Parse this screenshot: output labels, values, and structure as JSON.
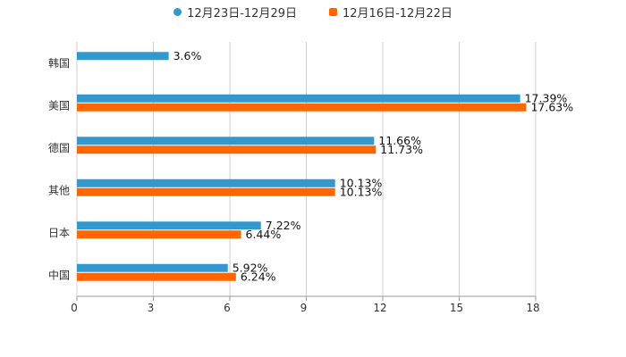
{
  "chart_data": {
    "type": "bar",
    "orientation": "horizontal",
    "categories": [
      "韩国",
      "美国",
      "德国",
      "其他",
      "日本",
      "中国"
    ],
    "series": [
      {
        "name": "12月23日-12月29日",
        "color": "#3399cc",
        "values": [
          3.6,
          17.39,
          11.66,
          10.13,
          7.22,
          5.92
        ],
        "labels": [
          "3.6%",
          "17.39%",
          "11.66%",
          "10.13%",
          "7.22%",
          "5.92%"
        ]
      },
      {
        "name": "12月16日-12月22日",
        "color": "#ff6600",
        "values": [
          null,
          17.63,
          11.73,
          10.13,
          6.44,
          6.24
        ],
        "labels": [
          null,
          "17.63%",
          "11.73%",
          "10.13%",
          "6.44%",
          "6.24%"
        ]
      }
    ],
    "xlim": [
      0,
      18
    ],
    "x_ticks": [
      "0",
      "3",
      "6",
      "9",
      "12",
      "15",
      "18"
    ],
    "legend_position": "top-center",
    "grid": true
  }
}
